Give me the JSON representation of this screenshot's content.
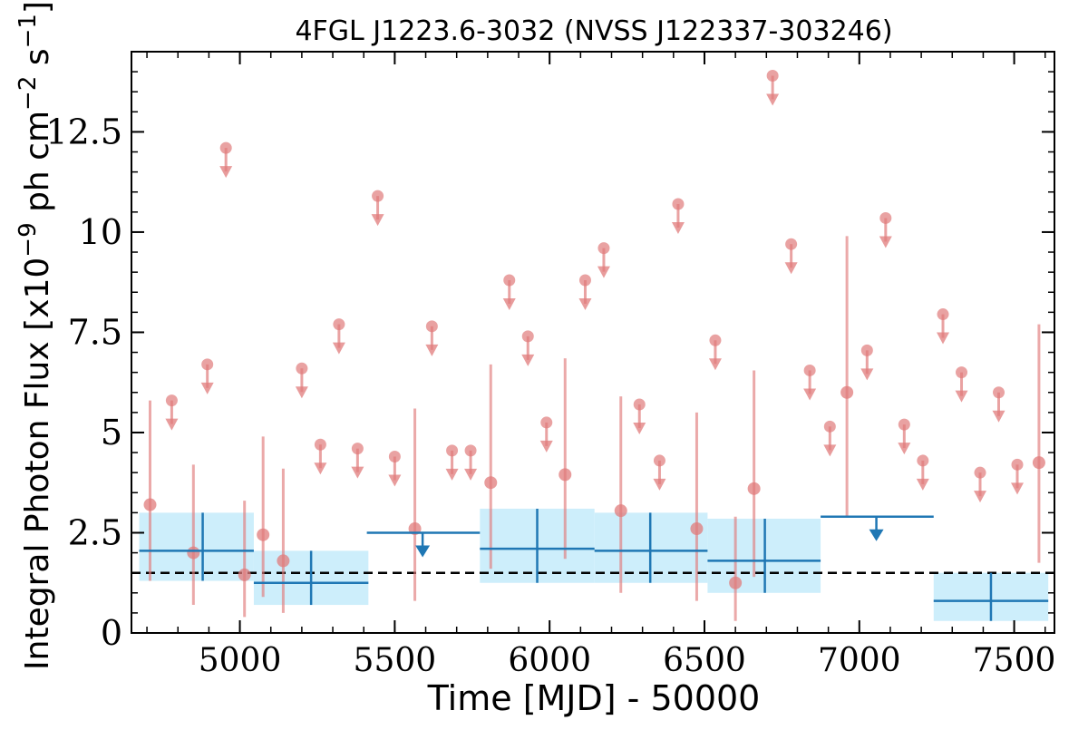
{
  "chart_data": {
    "type": "scatter",
    "title": "4FGL J1223.6-3032 (NVSS J122337-303246)",
    "xlabel": "Time [MJD] - 50000",
    "ylabel_parts": {
      "prefix": "Integral Photon Flux [x10",
      "exp1": "−9",
      "mid": " ph cm",
      "exp2": "−2",
      "mid2": " s",
      "exp3": "−1",
      "suffix": "]"
    },
    "xlim": [
      4650,
      7630
    ],
    "ylim": [
      0,
      14.5
    ],
    "x_ticks": [
      {
        "value": 5000,
        "label": "5000"
      },
      {
        "value": 5500,
        "label": "5500"
      },
      {
        "value": 6000,
        "label": "6000"
      },
      {
        "value": 6500,
        "label": "6500"
      },
      {
        "value": 7000,
        "label": "7000"
      },
      {
        "value": 7500,
        "label": "7500"
      }
    ],
    "y_ticks": [
      {
        "value": 0,
        "label": "0"
      },
      {
        "value": 2.5,
        "label": "2.5"
      },
      {
        "value": 5,
        "label": "5"
      },
      {
        "value": 7.5,
        "label": "7.5"
      },
      {
        "value": 10,
        "label": "10"
      },
      {
        "value": 12.5,
        "label": "12.5"
      }
    ],
    "x_minor_step": 100,
    "y_minor_step": 0.5,
    "reference_line": {
      "y": 1.5,
      "style": "dashed",
      "color": "#000000"
    },
    "colors": {
      "points": "#e07b7b",
      "binned": "#1f77b4",
      "band": "#cdeefb"
    },
    "series": [
      {
        "kind": "short-bin detections",
        "points": [
          {
            "x": 4710,
            "y": 3.2,
            "ylo": 1.3,
            "yhi": 5.8
          },
          {
            "x": 4850,
            "y": 2.0,
            "ylo": 0.7,
            "yhi": 4.2
          },
          {
            "x": 5015,
            "y": 1.45,
            "ylo": 0.4,
            "yhi": 3.3
          },
          {
            "x": 5075,
            "y": 2.45,
            "ylo": 0.9,
            "yhi": 4.9
          },
          {
            "x": 5140,
            "y": 1.8,
            "ylo": 0.5,
            "yhi": 4.1
          },
          {
            "x": 5565,
            "y": 2.6,
            "ylo": 0.8,
            "yhi": 5.6
          },
          {
            "x": 5810,
            "y": 3.75,
            "ylo": 1.6,
            "yhi": 6.7
          },
          {
            "x": 6050,
            "y": 3.95,
            "ylo": 1.85,
            "yhi": 6.85
          },
          {
            "x": 6230,
            "y": 3.05,
            "ylo": 1.0,
            "yhi": 5.9
          },
          {
            "x": 6475,
            "y": 2.6,
            "ylo": 0.8,
            "yhi": 5.5
          },
          {
            "x": 6600,
            "y": 1.25,
            "ylo": 0.3,
            "yhi": 2.9
          },
          {
            "x": 6660,
            "y": 3.6,
            "ylo": 1.4,
            "yhi": 6.55
          },
          {
            "x": 6960,
            "y": 6.0,
            "ylo": 2.9,
            "yhi": 9.9
          },
          {
            "x": 7580,
            "y": 4.25,
            "ylo": 1.75,
            "yhi": 7.7
          }
        ]
      },
      {
        "kind": "short-bin upper limits",
        "points": [
          {
            "x": 4780,
            "y": 5.8
          },
          {
            "x": 4895,
            "y": 6.7
          },
          {
            "x": 4955,
            "y": 12.1
          },
          {
            "x": 5200,
            "y": 6.6
          },
          {
            "x": 5260,
            "y": 4.7
          },
          {
            "x": 5320,
            "y": 7.7
          },
          {
            "x": 5380,
            "y": 4.6
          },
          {
            "x": 5445,
            "y": 10.9
          },
          {
            "x": 5500,
            "y": 4.4
          },
          {
            "x": 5620,
            "y": 7.65
          },
          {
            "x": 5685,
            "y": 4.55
          },
          {
            "x": 5745,
            "y": 4.55
          },
          {
            "x": 5870,
            "y": 8.8
          },
          {
            "x": 5930,
            "y": 7.4
          },
          {
            "x": 5990,
            "y": 5.25
          },
          {
            "x": 6115,
            "y": 8.8
          },
          {
            "x": 6175,
            "y": 9.6
          },
          {
            "x": 6290,
            "y": 5.7
          },
          {
            "x": 6355,
            "y": 4.3
          },
          {
            "x": 6415,
            "y": 10.7
          },
          {
            "x": 6535,
            "y": 7.3
          },
          {
            "x": 6720,
            "y": 13.9
          },
          {
            "x": 6780,
            "y": 9.7
          },
          {
            "x": 6840,
            "y": 6.55
          },
          {
            "x": 6905,
            "y": 5.15
          },
          {
            "x": 7025,
            "y": 7.05
          },
          {
            "x": 7085,
            "y": 10.35
          },
          {
            "x": 7145,
            "y": 5.2
          },
          {
            "x": 7205,
            "y": 4.3
          },
          {
            "x": 7270,
            "y": 7.95
          },
          {
            "x": 7330,
            "y": 6.5
          },
          {
            "x": 7390,
            "y": 4.0
          },
          {
            "x": 7450,
            "y": 6.0
          },
          {
            "x": 7510,
            "y": 4.2
          }
        ]
      },
      {
        "kind": "long-bin detections",
        "points": [
          {
            "x0": 4675,
            "x1": 5045,
            "x": 4880,
            "y": 2.05,
            "ylo": 1.3,
            "yhi": 3.0
          },
          {
            "x0": 5045,
            "x1": 5415,
            "x": 5230,
            "y": 1.25,
            "ylo": 0.7,
            "yhi": 2.05
          },
          {
            "x0": 5775,
            "x1": 6145,
            "x": 5960,
            "y": 2.1,
            "ylo": 1.25,
            "yhi": 3.1
          },
          {
            "x0": 6145,
            "x1": 6510,
            "x": 6325,
            "y": 2.05,
            "ylo": 1.25,
            "yhi": 3.0
          },
          {
            "x0": 6510,
            "x1": 6875,
            "x": 6695,
            "y": 1.8,
            "ylo": 1.0,
            "yhi": 2.85
          },
          {
            "x0": 7240,
            "x1": 7610,
            "x": 7425,
            "y": 0.8,
            "ylo": 0.3,
            "yhi": 1.5
          }
        ]
      },
      {
        "kind": "long-bin upper limits",
        "points": [
          {
            "x0": 5410,
            "x1": 5775,
            "x": 5590,
            "y": 2.5
          },
          {
            "x0": 6875,
            "x1": 7240,
            "x": 7055,
            "y": 2.9
          }
        ]
      }
    ]
  }
}
